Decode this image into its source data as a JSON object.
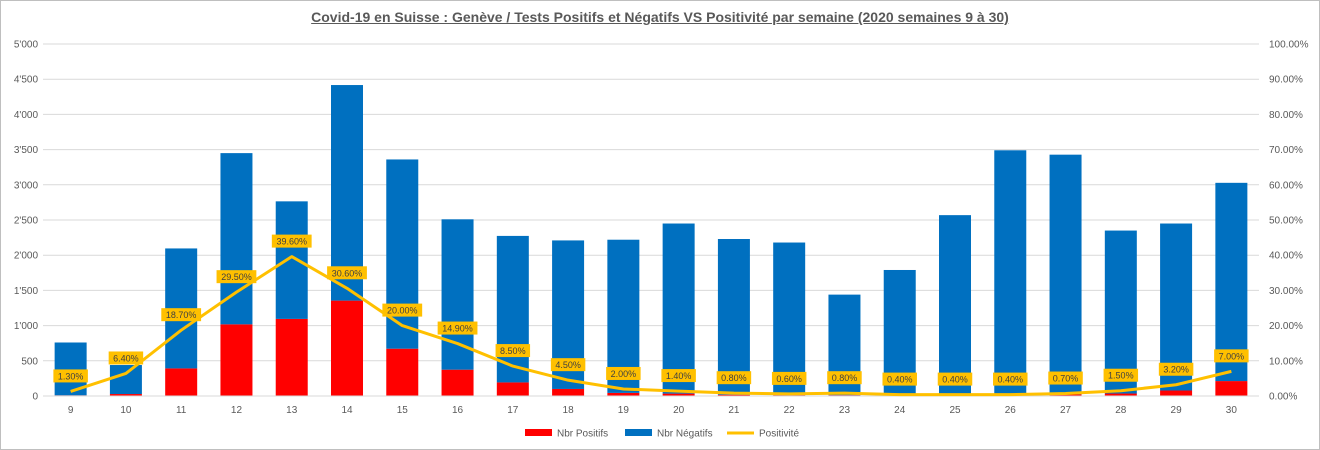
{
  "chart_data": {
    "type": "bar",
    "title": "Covid-19 en Suisse : Genève / Tests Positifs et Négatifs VS Positivité par semaine (2020 semaines 9 à 30)",
    "categories": [
      "9",
      "10",
      "11",
      "12",
      "13",
      "14",
      "15",
      "16",
      "17",
      "18",
      "19",
      "20",
      "21",
      "22",
      "23",
      "24",
      "25",
      "26",
      "27",
      "28",
      "29",
      "30"
    ],
    "stacked": true,
    "series": [
      {
        "name": "Nbr Positifs",
        "kind": "bar",
        "axis": "left",
        "color": "#ff0000",
        "values": [
          10,
          28,
          392,
          1018,
          1095,
          1355,
          672,
          374,
          193,
          100,
          44,
          34,
          18,
          13,
          12,
          7,
          10,
          14,
          24,
          35,
          78,
          212
        ]
      },
      {
        "name": "Nbr Négatifs",
        "kind": "bar",
        "axis": "left",
        "color": "#0070c0",
        "values": [
          750,
          412,
          1704,
          2432,
          1670,
          3062,
          2688,
          2136,
          2081,
          2110,
          2176,
          2416,
          2212,
          2167,
          1428,
          1783,
          2559,
          3476,
          3404,
          2315,
          2372,
          2816
        ]
      },
      {
        "name": "Positivité",
        "kind": "line",
        "axis": "right",
        "color": "#ffc000",
        "values": [
          1.3,
          6.4,
          18.7,
          29.5,
          39.6,
          30.6,
          20.0,
          14.9,
          8.5,
          4.5,
          2.0,
          1.4,
          0.8,
          0.6,
          0.8,
          0.4,
          0.4,
          0.4,
          0.7,
          1.5,
          3.2,
          7.0
        ],
        "labels": [
          "1.30%",
          "6.40%",
          "18.70%",
          "29.50%",
          "39.60%",
          "30.60%",
          "20.00%",
          "14.90%",
          "8.50%",
          "4.50%",
          "2.00%",
          "1.40%",
          "0.80%",
          "0.60%",
          "0.80%",
          "0.40%",
          "0.40%",
          "0.40%",
          "0.70%",
          "1.50%",
          "3.20%",
          "7.00%"
        ]
      }
    ],
    "y_left": {
      "min": 0,
      "max": 5000,
      "ticks": [
        "0",
        "500",
        "1'000",
        "1'500",
        "2'000",
        "2'500",
        "3'000",
        "3'500",
        "4'000",
        "4'500",
        "5'000"
      ]
    },
    "y_right": {
      "min": 0,
      "max": 100,
      "ticks": [
        "0.00%",
        "10.00%",
        "20.00%",
        "30.00%",
        "40.00%",
        "50.00%",
        "60.00%",
        "70.00%",
        "80.00%",
        "90.00%",
        "100.00%"
      ]
    },
    "grid": true,
    "legend": {
      "placement": "bottom",
      "items": [
        "Nbr Positifs",
        "Nbr Négatifs",
        "Positivité"
      ]
    }
  }
}
